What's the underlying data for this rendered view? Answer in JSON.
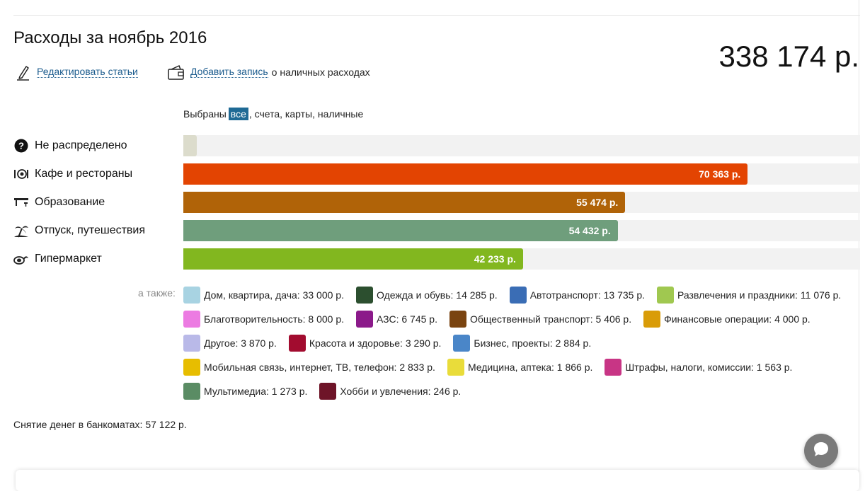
{
  "page": {
    "title": "Расходы за ноябрь 2016",
    "total": "338 174 р."
  },
  "actions": {
    "edit_label": "Редактировать статьи",
    "add_label": "Добавить запись",
    "add_suffix": "о наличных расходах"
  },
  "filter": {
    "prefix": "Выбраны",
    "selected": "все",
    "rest": ", счета, карты, наличные"
  },
  "categories": [
    {
      "label": "Не распределено",
      "icon": "question-icon",
      "amount": "",
      "share": 0.02,
      "color": "#dcdccc"
    },
    {
      "label": "Кафе и рестораны",
      "icon": "cutlery-icon",
      "amount": "70 363 р.",
      "share": 0.834,
      "color": "#e34402"
    },
    {
      "label": "Образование",
      "icon": "school-desk-icon",
      "amount": "55 474 р.",
      "share": 0.653,
      "color": "#b06308"
    },
    {
      "label": "Отпуск, путешествия",
      "icon": "palm-tree-icon",
      "amount": "54 432 р.",
      "share": 0.642,
      "color": "#6f9e7c"
    },
    {
      "label": "Гипермаркет",
      "icon": "shopping-bag-icon",
      "amount": "42 233 р.",
      "share": 0.502,
      "color": "#82b71f"
    }
  ],
  "also": {
    "label": "а также:",
    "rows": [
      [
        {
          "text": "Дом, квартира, дача: 33 000 р.",
          "color": "#a8d3e2"
        },
        {
          "text": "Одежда и обувь: 14 285 р.",
          "color": "#2c4f2f"
        },
        {
          "text": "Автотранспорт: 13 735 р.",
          "color": "#3a6db5"
        },
        {
          "text": "Развлечения и праздники: 11 076 р.",
          "color": "#a0c850"
        }
      ],
      [
        {
          "text": "Благотворительность: 8 000 р.",
          "color": "#ec7be2"
        },
        {
          "text": "АЗС: 6 745 р.",
          "color": "#8b1a8a"
        },
        {
          "text": "Общественный транспорт: 5 406 р.",
          "color": "#7a4410"
        },
        {
          "text": "Финансовые операции: 4 000 р.",
          "color": "#d99c08"
        }
      ],
      [
        {
          "text": "Другое: 3 870 р.",
          "color": "#b9b9e8"
        },
        {
          "text": "Красота и здоровье: 3 290 р.",
          "color": "#a20c2f"
        },
        {
          "text": "Бизнес, проекты: 2 884 р.",
          "color": "#4a86c8"
        }
      ],
      [
        {
          "text": "Мобильная связь, интернет, ТВ, телефон: 2 833 р.",
          "color": "#e7bd00"
        },
        {
          "text": "Медицина, аптека: 1 866 р.",
          "color": "#e9dc3a"
        },
        {
          "text": "Штрафы, налоги, комиссии: 1 563 р.",
          "color": "#c83585"
        }
      ],
      [
        {
          "text": "Мультимедиа: 1 273 р.",
          "color": "#5a8c64"
        },
        {
          "text": "Хобби и увлечения: 246 р.",
          "color": "#6e1428"
        }
      ]
    ]
  },
  "atm": "Снятие денег в банкоматах: 57 122 р.",
  "chat": {
    "icon": "chat-bubble-icon"
  }
}
